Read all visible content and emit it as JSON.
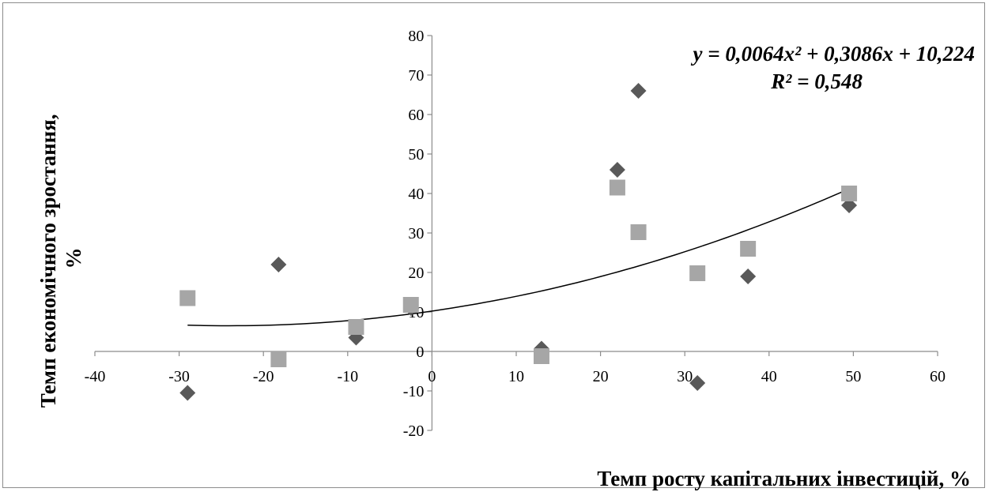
{
  "chart_data": {
    "type": "scatter",
    "title": "",
    "xlabel": "Темп росту капітальних інвестицій, %",
    "ylabel": "Темп економічного зростання, %",
    "xlim": [
      -40,
      60
    ],
    "ylim": [
      -20,
      80
    ],
    "xticks": [
      -40,
      -30,
      -20,
      -10,
      0,
      10,
      20,
      30,
      40,
      50,
      60
    ],
    "yticks": [
      -20,
      -10,
      0,
      10,
      20,
      30,
      40,
      50,
      60,
      70,
      80
    ],
    "xtick_labels": [
      "-40",
      "-30",
      "-20",
      "-10",
      "0",
      "10",
      "20",
      "30",
      "40",
      "50",
      "60"
    ],
    "ytick_labels": [
      "-20",
      "-10",
      "0",
      "10",
      "20",
      "30",
      "40",
      "50",
      "60",
      "70",
      "80"
    ],
    "grid": false,
    "series": [
      {
        "marker": "diamond",
        "color": "#595959",
        "points": [
          [
            -29,
            -10.5
          ],
          [
            -18.2,
            22
          ],
          [
            -9,
            3.5
          ],
          [
            -2.5,
            11
          ],
          [
            13,
            0.7
          ],
          [
            22,
            46
          ],
          [
            24.5,
            66
          ],
          [
            31.5,
            -8
          ],
          [
            37.5,
            19
          ],
          [
            49.5,
            37
          ]
        ]
      },
      {
        "marker": "square",
        "color": "#a6a6a6",
        "points": [
          [
            -29,
            13.5
          ],
          [
            -18.2,
            -2
          ],
          [
            -9,
            6.2
          ],
          [
            -2.5,
            11.8
          ],
          [
            13,
            -1.2
          ],
          [
            22,
            41.5
          ],
          [
            24.5,
            30.2
          ],
          [
            31.5,
            19.8
          ],
          [
            37.5,
            26
          ],
          [
            49.5,
            40
          ]
        ]
      }
    ],
    "trendline": {
      "type": "polynomial",
      "coefficients": [
        0.0064,
        0.3086,
        10.224
      ],
      "x_range": [
        -29,
        49.5
      ],
      "color": "#000000"
    },
    "annotations": {
      "equation": "y = 0,0064x² + 0,3086x + 10,224",
      "r_squared": "R² = 0,548"
    }
  }
}
